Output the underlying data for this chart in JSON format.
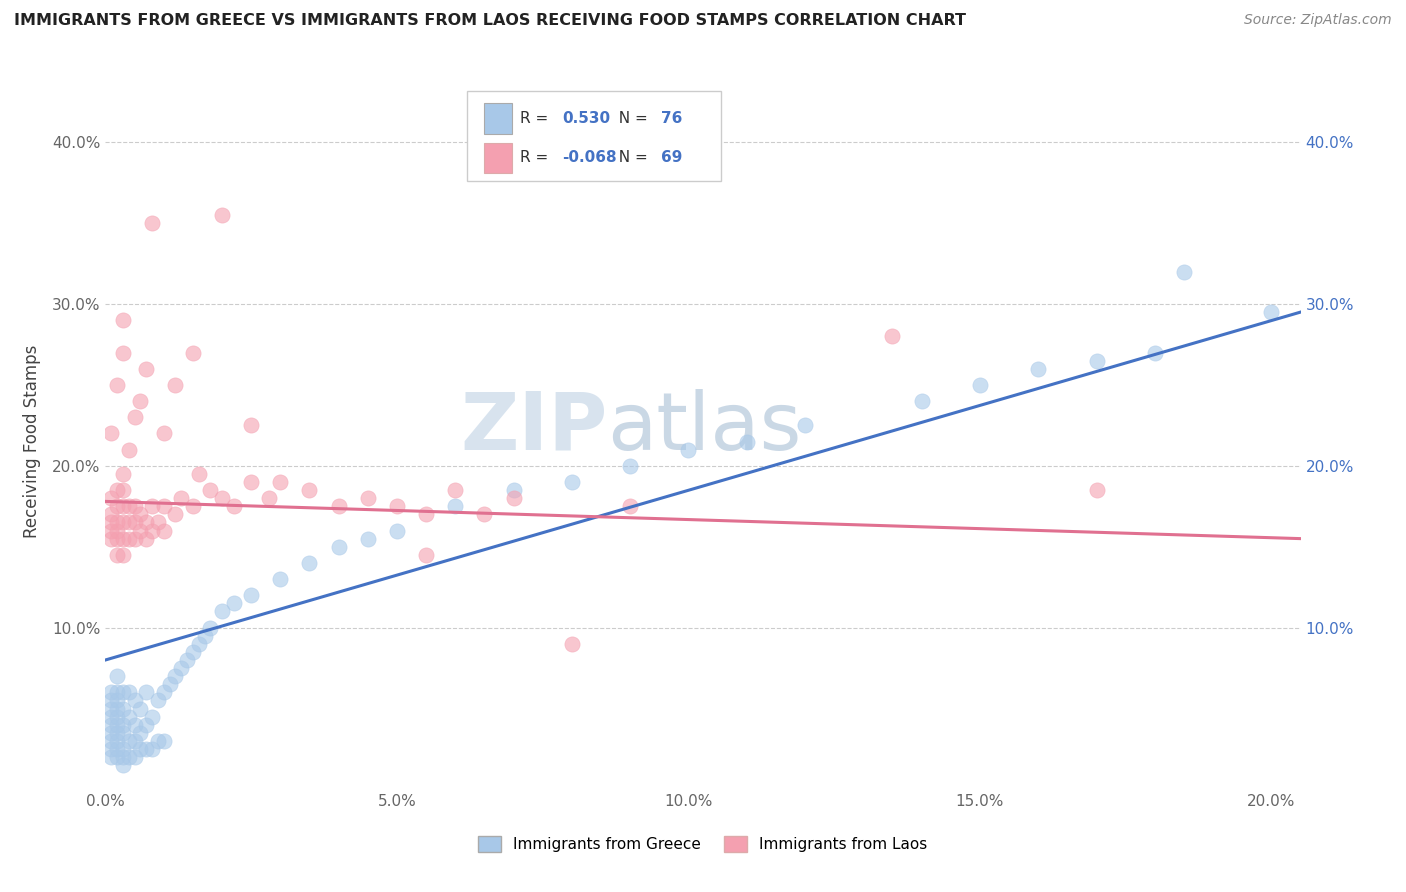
{
  "title": "IMMIGRANTS FROM GREECE VS IMMIGRANTS FROM LAOS RECEIVING FOOD STAMPS CORRELATION CHART",
  "source": "Source: ZipAtlas.com",
  "ylabel": "Receiving Food Stamps",
  "legend_label1": "Immigrants from Greece",
  "legend_label2": "Immigrants from Laos",
  "R1": 0.53,
  "N1": 76,
  "R2": -0.068,
  "N2": 69,
  "color1": "#a8c8e8",
  "color2": "#f4a0b0",
  "trendline1_color": "#4472c4",
  "trendline2_color": "#e07090",
  "xlim": [
    0.0,
    0.205
  ],
  "ylim": [
    0.0,
    0.43
  ],
  "xticks": [
    0.0,
    0.05,
    0.1,
    0.15,
    0.2
  ],
  "yticks": [
    0.0,
    0.1,
    0.2,
    0.3,
    0.4
  ],
  "xtick_labels": [
    "0.0%",
    "5.0%",
    "10.0%",
    "15.0%",
    "20.0%"
  ],
  "ytick_labels_left": [
    "",
    "10.0%",
    "20.0%",
    "30.0%",
    "40.0%"
  ],
  "ytick_labels_right": [
    "",
    "10.0%",
    "20.0%",
    "30.0%",
    "40.0%"
  ],
  "watermark_zip": "ZIP",
  "watermark_atlas": "atlas",
  "trendline1_x0": 0.0,
  "trendline1_y0": 0.08,
  "trendline1_x1": 0.205,
  "trendline1_y1": 0.295,
  "trendline2_x0": 0.0,
  "trendline2_y0": 0.178,
  "trendline2_x1": 0.205,
  "trendline2_y1": 0.155,
  "greece_x": [
    0.001,
    0.001,
    0.001,
    0.001,
    0.001,
    0.001,
    0.001,
    0.001,
    0.001,
    0.002,
    0.002,
    0.002,
    0.002,
    0.002,
    0.002,
    0.002,
    0.002,
    0.002,
    0.002,
    0.003,
    0.003,
    0.003,
    0.003,
    0.003,
    0.003,
    0.003,
    0.004,
    0.004,
    0.004,
    0.004,
    0.005,
    0.005,
    0.005,
    0.005,
    0.006,
    0.006,
    0.006,
    0.007,
    0.007,
    0.007,
    0.008,
    0.008,
    0.009,
    0.009,
    0.01,
    0.01,
    0.011,
    0.012,
    0.013,
    0.014,
    0.015,
    0.016,
    0.017,
    0.018,
    0.02,
    0.022,
    0.025,
    0.03,
    0.035,
    0.04,
    0.045,
    0.05,
    0.06,
    0.07,
    0.08,
    0.09,
    0.1,
    0.11,
    0.12,
    0.14,
    0.15,
    0.16,
    0.17,
    0.18,
    0.185,
    0.2
  ],
  "greece_y": [
    0.02,
    0.025,
    0.03,
    0.035,
    0.04,
    0.045,
    0.05,
    0.055,
    0.06,
    0.02,
    0.025,
    0.03,
    0.035,
    0.04,
    0.045,
    0.05,
    0.055,
    0.06,
    0.07,
    0.015,
    0.02,
    0.025,
    0.035,
    0.04,
    0.05,
    0.06,
    0.02,
    0.03,
    0.045,
    0.06,
    0.02,
    0.03,
    0.04,
    0.055,
    0.025,
    0.035,
    0.05,
    0.025,
    0.04,
    0.06,
    0.025,
    0.045,
    0.03,
    0.055,
    0.03,
    0.06,
    0.065,
    0.07,
    0.075,
    0.08,
    0.085,
    0.09,
    0.095,
    0.1,
    0.11,
    0.115,
    0.12,
    0.13,
    0.14,
    0.15,
    0.155,
    0.16,
    0.175,
    0.185,
    0.19,
    0.2,
    0.21,
    0.215,
    0.225,
    0.24,
    0.25,
    0.26,
    0.265,
    0.27,
    0.32,
    0.295
  ],
  "laos_x": [
    0.001,
    0.001,
    0.001,
    0.001,
    0.001,
    0.002,
    0.002,
    0.002,
    0.002,
    0.002,
    0.002,
    0.003,
    0.003,
    0.003,
    0.003,
    0.003,
    0.003,
    0.004,
    0.004,
    0.004,
    0.005,
    0.005,
    0.005,
    0.006,
    0.006,
    0.007,
    0.007,
    0.008,
    0.008,
    0.009,
    0.01,
    0.01,
    0.012,
    0.013,
    0.015,
    0.016,
    0.018,
    0.02,
    0.022,
    0.025,
    0.028,
    0.03,
    0.035,
    0.04,
    0.045,
    0.05,
    0.055,
    0.06,
    0.065,
    0.07,
    0.001,
    0.002,
    0.003,
    0.003,
    0.004,
    0.005,
    0.006,
    0.007,
    0.008,
    0.01,
    0.012,
    0.015,
    0.02,
    0.025,
    0.055,
    0.08,
    0.09,
    0.135,
    0.17
  ],
  "laos_y": [
    0.155,
    0.16,
    0.165,
    0.17,
    0.18,
    0.145,
    0.155,
    0.16,
    0.165,
    0.175,
    0.185,
    0.145,
    0.155,
    0.165,
    0.175,
    0.185,
    0.195,
    0.155,
    0.165,
    0.175,
    0.155,
    0.165,
    0.175,
    0.16,
    0.17,
    0.155,
    0.165,
    0.16,
    0.175,
    0.165,
    0.16,
    0.175,
    0.17,
    0.18,
    0.175,
    0.195,
    0.185,
    0.18,
    0.175,
    0.19,
    0.18,
    0.19,
    0.185,
    0.175,
    0.18,
    0.175,
    0.17,
    0.185,
    0.17,
    0.18,
    0.22,
    0.25,
    0.27,
    0.29,
    0.21,
    0.23,
    0.24,
    0.26,
    0.35,
    0.22,
    0.25,
    0.27,
    0.355,
    0.225,
    0.145,
    0.09,
    0.175,
    0.28,
    0.185
  ]
}
